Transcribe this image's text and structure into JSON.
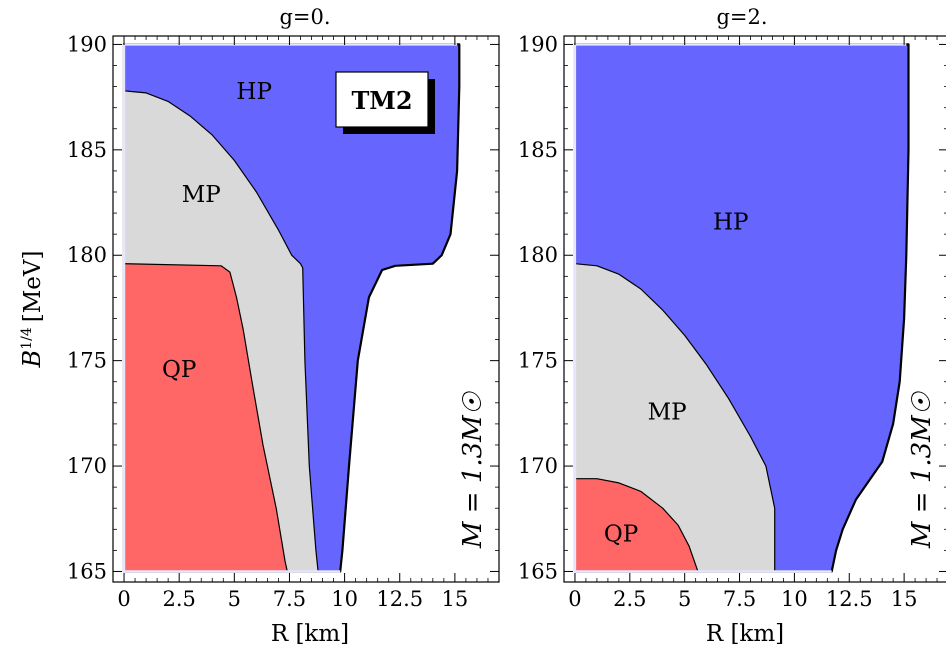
{
  "colors": {
    "HP": "#6666ff",
    "MP": "#d9d9d9",
    "QP": "#ff6666",
    "frame": "#000000"
  },
  "chart_data": [
    {
      "type": "area",
      "title": "g=0.",
      "xlabel": "R [km]",
      "ylabel_base": "B",
      "ylabel_exp": "1/4",
      "ylabel_unit": "[MeV]",
      "xlim": [
        -0.5,
        17
      ],
      "ylim": [
        164.5,
        190.4
      ],
      "xticks": [
        0,
        2.5,
        5,
        7.5,
        10,
        12.5,
        15
      ],
      "xtick_labels": [
        "0",
        "2.5",
        "5",
        "7.5",
        "10",
        "12.5",
        "15"
      ],
      "yticks": [
        165,
        170,
        175,
        180,
        185,
        190
      ],
      "ytick_labels": [
        "165",
        "170",
        "175",
        "180",
        "185",
        "190"
      ],
      "annotation": "M = 1.3M☉",
      "badge": "TM2",
      "regions": [
        {
          "name": "HP",
          "label": "HP",
          "label_at": [
            5.9,
            187.7
          ],
          "polygon": [
            [
              0,
              190
            ],
            [
              15.2,
              190
            ],
            [
              15.2,
              188
            ],
            [
              15.1,
              184
            ],
            [
              14.8,
              181
            ],
            [
              14.4,
              180
            ],
            [
              14.0,
              179.6
            ],
            [
              12.3,
              179.5
            ],
            [
              11.7,
              179.3
            ],
            [
              11.1,
              178
            ],
            [
              10.6,
              175
            ],
            [
              10.2,
              170
            ],
            [
              9.9,
              166
            ],
            [
              9.8,
              165
            ],
            [
              0,
              165
            ]
          ]
        },
        {
          "name": "MP",
          "label": "MP",
          "label_at": [
            3.5,
            182.8
          ],
          "polygon": [
            [
              0,
              187.8
            ],
            [
              1,
              187.7
            ],
            [
              2,
              187.3
            ],
            [
              3,
              186.6
            ],
            [
              4,
              185.7
            ],
            [
              5,
              184.5
            ],
            [
              6,
              183
            ],
            [
              7,
              181.2
            ],
            [
              7.6,
              180
            ],
            [
              8,
              179.6
            ],
            [
              8.1,
              179.4
            ],
            [
              8.2,
              175
            ],
            [
              8.4,
              170
            ],
            [
              8.7,
              166
            ],
            [
              8.8,
              165
            ],
            [
              0,
              165
            ]
          ]
        },
        {
          "name": "QP",
          "label": "QP",
          "label_at": [
            2.5,
            174.5
          ],
          "polygon": [
            [
              0,
              179.6
            ],
            [
              4.4,
              179.5
            ],
            [
              4.8,
              179.2
            ],
            [
              5.1,
              178
            ],
            [
              5.4,
              176.5
            ],
            [
              5.8,
              174
            ],
            [
              6.3,
              171
            ],
            [
              6.9,
              168
            ],
            [
              7.3,
              165.5
            ],
            [
              7.4,
              165
            ],
            [
              0,
              165
            ]
          ]
        }
      ]
    },
    {
      "type": "area",
      "title": "g=2.",
      "xlabel": "R [km]",
      "xlim": [
        -0.5,
        17
      ],
      "ylim": [
        164.5,
        190.4
      ],
      "xticks": [
        0,
        2.5,
        5,
        7.5,
        10,
        12.5,
        15
      ],
      "xtick_labels": [
        "0",
        "2.5",
        "5",
        "7.5",
        "10",
        "12.5",
        "15"
      ],
      "yticks": [
        165,
        170,
        175,
        180,
        185,
        190
      ],
      "ytick_labels": [
        "165",
        "170",
        "175",
        "180",
        "185",
        "190"
      ],
      "annotation": "M = 1.3M☉",
      "regions": [
        {
          "name": "HP",
          "label": "HP",
          "label_at": [
            7.1,
            181.5
          ],
          "polygon": [
            [
              0,
              190
            ],
            [
              15.2,
              190
            ],
            [
              15.2,
              185
            ],
            [
              15.1,
              180
            ],
            [
              15,
              177
            ],
            [
              14.8,
              174
            ],
            [
              14.5,
              172
            ],
            [
              14,
              170.2
            ],
            [
              13.4,
              169.3
            ],
            [
              12.8,
              168.4
            ],
            [
              12.2,
              167
            ],
            [
              11.9,
              166
            ],
            [
              11.7,
              165
            ],
            [
              0,
              165
            ]
          ]
        },
        {
          "name": "MP",
          "label": "MP",
          "label_at": [
            4.2,
            172.5
          ],
          "polygon": [
            [
              0,
              179.6
            ],
            [
              1,
              179.5
            ],
            [
              2,
              179.1
            ],
            [
              3,
              178.4
            ],
            [
              4,
              177.4
            ],
            [
              5,
              176.2
            ],
            [
              6,
              174.8
            ],
            [
              7,
              173.2
            ],
            [
              8,
              171.4
            ],
            [
              8.7,
              170
            ],
            [
              9.1,
              168
            ],
            [
              9.1,
              165
            ],
            [
              0,
              165
            ]
          ]
        },
        {
          "name": "QP",
          "label": "QP",
          "label_at": [
            2.1,
            166.7
          ],
          "polygon": [
            [
              0,
              169.4
            ],
            [
              1,
              169.4
            ],
            [
              2,
              169.2
            ],
            [
              3,
              168.8
            ],
            [
              4,
              168.0
            ],
            [
              4.7,
              167.2
            ],
            [
              5.2,
              166.2
            ],
            [
              5.5,
              165.3
            ],
            [
              5.6,
              165
            ],
            [
              0,
              165
            ]
          ]
        }
      ]
    }
  ]
}
